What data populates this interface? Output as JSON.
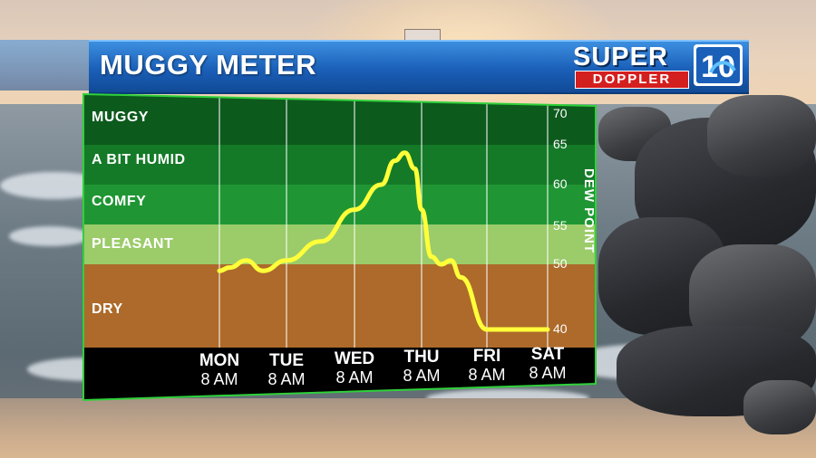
{
  "header": {
    "title": "MUGGY METER"
  },
  "logo": {
    "super": "SUPER",
    "doppler": "DOPPLER",
    "number": "10"
  },
  "colors": {
    "muggy": "#0d5a1d",
    "a_bit_humid": "#147a27",
    "comfy": "#1f9633",
    "pleasant": "#9ccb6a",
    "dry": "#ad6a2a",
    "line": "#ffff3a",
    "panel_border": "#2fd13a",
    "axis_footer": "#000000"
  },
  "chart_data": {
    "type": "line",
    "title": "MUGGY METER",
    "xlabel": "",
    "ylabel": "DEW POINT",
    "ylim": [
      35,
      72
    ],
    "yticks": [
      70,
      65,
      60,
      55,
      50,
      40
    ],
    "categories": [
      {
        "day": "MON",
        "time": "8 AM"
      },
      {
        "day": "TUE",
        "time": "8 AM"
      },
      {
        "day": "WED",
        "time": "8 AM"
      },
      {
        "day": "THU",
        "time": "8 AM"
      },
      {
        "day": "FRI",
        "time": "8 AM"
      },
      {
        "day": "SAT",
        "time": "8 AM"
      }
    ],
    "bands": [
      {
        "label": "MUGGY",
        "from": 65,
        "to": 72
      },
      {
        "label": "A BIT HUMID",
        "from": 60,
        "to": 65
      },
      {
        "label": "COMFY",
        "from": 55,
        "to": 60
      },
      {
        "label": "PLEASANT",
        "from": 50,
        "to": 55
      },
      {
        "label": "DRY",
        "from": 35,
        "to": 50
      }
    ],
    "series": [
      {
        "x": [
          0,
          0.15,
          0.4,
          0.65,
          1.0,
          1.5,
          2.0,
          2.4,
          2.6,
          2.75,
          2.9,
          3.0,
          3.15,
          3.3,
          3.45,
          3.6,
          4.0,
          4.6,
          5.0
        ],
        "values": [
          49,
          49.5,
          50.5,
          49,
          50.5,
          53,
          57,
          60,
          63,
          64,
          62,
          57,
          51,
          50,
          50.5,
          48,
          40,
          40,
          40
        ]
      }
    ]
  }
}
